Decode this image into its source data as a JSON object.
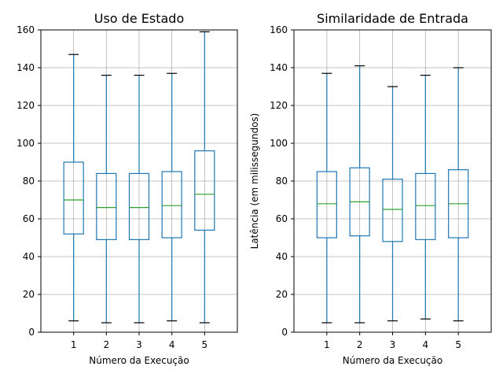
{
  "chart_data": [
    {
      "type": "box",
      "title": "Uso de Estado",
      "xlabel": "Número da Execução",
      "ylabel": "",
      "categories": [
        "1",
        "2",
        "3",
        "4",
        "5"
      ],
      "ylim": [
        0,
        160
      ],
      "yticks": [
        0,
        20,
        40,
        60,
        80,
        100,
        120,
        140,
        160
      ],
      "grid": true,
      "boxes": [
        {
          "whislo": 6,
          "q1": 52,
          "med": 70,
          "q3": 90,
          "whishi": 147
        },
        {
          "whislo": 5,
          "q1": 49,
          "med": 66,
          "q3": 84,
          "whishi": 136
        },
        {
          "whislo": 5,
          "q1": 49,
          "med": 66,
          "q3": 84,
          "whishi": 136
        },
        {
          "whislo": 6,
          "q1": 50,
          "med": 67,
          "q3": 85,
          "whishi": 137
        },
        {
          "whislo": 5,
          "q1": 54,
          "med": 73,
          "q3": 96,
          "whishi": 159
        }
      ]
    },
    {
      "type": "box",
      "title": "Similaridade de Entrada",
      "xlabel": "Número da Execução",
      "ylabel": "Latência (em milissegundos)",
      "categories": [
        "1",
        "2",
        "3",
        "4",
        "5"
      ],
      "ylim": [
        0,
        160
      ],
      "yticks": [
        0,
        20,
        40,
        60,
        80,
        100,
        120,
        140,
        160
      ],
      "grid": true,
      "boxes": [
        {
          "whislo": 5,
          "q1": 50,
          "med": 68,
          "q3": 85,
          "whishi": 137
        },
        {
          "whislo": 5,
          "q1": 51,
          "med": 69,
          "q3": 87,
          "whishi": 141
        },
        {
          "whislo": 6,
          "q1": 48,
          "med": 65,
          "q3": 81,
          "whishi": 130
        },
        {
          "whislo": 7,
          "q1": 49,
          "med": 67,
          "q3": 84,
          "whishi": 136
        },
        {
          "whislo": 6,
          "q1": 50,
          "med": 68,
          "q3": 86,
          "whishi": 140
        }
      ]
    }
  ],
  "colors": {
    "box": "#1f77b4",
    "median": "#2ca02c",
    "cap": "#000000",
    "grid": "#b0b0b0",
    "axis": "#000000"
  }
}
